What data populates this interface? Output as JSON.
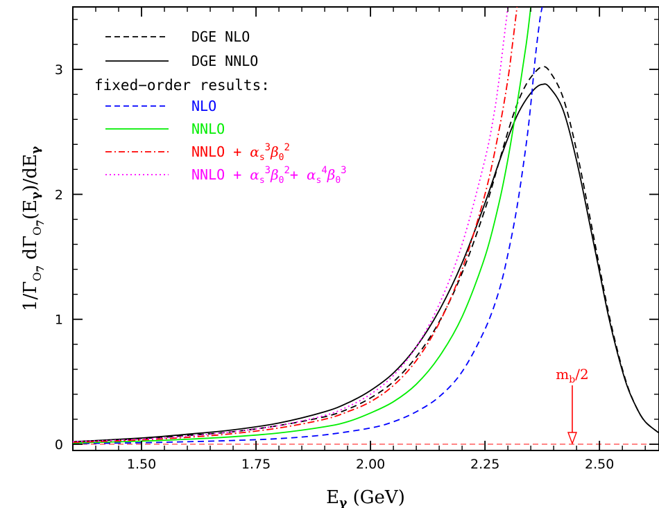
{
  "chart_data": {
    "type": "line",
    "xlabel": "Eγ (GeV)",
    "ylabel": "1/Γ₀₇   dΓ₀₇(Eγ)/dEγ",
    "xlim": [
      1.35,
      2.63
    ],
    "ylim": [
      -0.05,
      3.5
    ],
    "x_ticks": [
      1.5,
      1.75,
      2.0,
      2.25,
      2.5
    ],
    "x_tick_labels": [
      "1.50",
      "1.75",
      "2.00",
      "2.25",
      "2.50"
    ],
    "y_ticks": [
      0,
      1,
      2,
      3
    ],
    "y_tick_labels": [
      "0",
      "1",
      "2",
      "3"
    ],
    "grid": false,
    "legend_placement": "top-left",
    "legend_heading": "fixed−order results:",
    "annotation": {
      "text": "m_b/2",
      "x": 2.44,
      "y": 0,
      "color": "#ff0000"
    },
    "baseline": {
      "y": 0,
      "color": "#ff4d4d",
      "style": "dashed"
    },
    "series": [
      {
        "name": "DGE NLO",
        "color": "#000000",
        "style": "dashed",
        "points": [
          [
            1.35,
            0.02
          ],
          [
            1.5,
            0.045
          ],
          [
            1.6,
            0.07
          ],
          [
            1.7,
            0.1
          ],
          [
            1.8,
            0.15
          ],
          [
            1.9,
            0.22
          ],
          [
            1.95,
            0.28
          ],
          [
            2.0,
            0.37
          ],
          [
            2.05,
            0.5
          ],
          [
            2.1,
            0.7
          ],
          [
            2.15,
            0.98
          ],
          [
            2.2,
            1.37
          ],
          [
            2.25,
            1.88
          ],
          [
            2.28,
            2.25
          ],
          [
            2.3,
            2.5
          ],
          [
            2.32,
            2.72
          ],
          [
            2.34,
            2.88
          ],
          [
            2.36,
            2.98
          ],
          [
            2.375,
            3.02
          ],
          [
            2.39,
            2.99
          ],
          [
            2.42,
            2.78
          ],
          [
            2.45,
            2.35
          ],
          [
            2.48,
            1.8
          ],
          [
            2.5,
            1.42
          ],
          [
            2.52,
            1.05
          ],
          [
            2.54,
            0.74
          ],
          [
            2.56,
            0.48
          ],
          [
            2.58,
            0.3
          ],
          [
            2.6,
            0.18
          ],
          [
            2.63,
            0.09
          ]
        ]
      },
      {
        "name": "DGE NNLO",
        "color": "#000000",
        "style": "solid",
        "points": [
          [
            1.35,
            0.02
          ],
          [
            1.5,
            0.05
          ],
          [
            1.6,
            0.08
          ],
          [
            1.7,
            0.115
          ],
          [
            1.8,
            0.17
          ],
          [
            1.9,
            0.26
          ],
          [
            1.95,
            0.33
          ],
          [
            2.0,
            0.43
          ],
          [
            2.05,
            0.57
          ],
          [
            2.1,
            0.78
          ],
          [
            2.15,
            1.07
          ],
          [
            2.2,
            1.45
          ],
          [
            2.25,
            1.93
          ],
          [
            2.28,
            2.25
          ],
          [
            2.3,
            2.45
          ],
          [
            2.32,
            2.63
          ],
          [
            2.34,
            2.76
          ],
          [
            2.36,
            2.85
          ],
          [
            2.375,
            2.88
          ],
          [
            2.39,
            2.86
          ],
          [
            2.42,
            2.68
          ],
          [
            2.45,
            2.27
          ],
          [
            2.48,
            1.74
          ],
          [
            2.5,
            1.38
          ],
          [
            2.52,
            1.02
          ],
          [
            2.54,
            0.72
          ],
          [
            2.56,
            0.47
          ],
          [
            2.58,
            0.3
          ],
          [
            2.6,
            0.18
          ],
          [
            2.63,
            0.09
          ]
        ]
      },
      {
        "name": "NLO",
        "color": "#0000ff",
        "style": "dashed",
        "points": [
          [
            1.35,
            0.005
          ],
          [
            1.5,
            0.012
          ],
          [
            1.6,
            0.02
          ],
          [
            1.7,
            0.03
          ],
          [
            1.8,
            0.045
          ],
          [
            1.9,
            0.075
          ],
          [
            2.0,
            0.13
          ],
          [
            2.05,
            0.18
          ],
          [
            2.1,
            0.26
          ],
          [
            2.15,
            0.38
          ],
          [
            2.2,
            0.58
          ],
          [
            2.25,
            0.92
          ],
          [
            2.28,
            1.22
          ],
          [
            2.3,
            1.52
          ],
          [
            2.32,
            1.9
          ],
          [
            2.34,
            2.4
          ],
          [
            2.35,
            2.72
          ],
          [
            2.36,
            3.1
          ],
          [
            2.37,
            3.4
          ],
          [
            2.375,
            3.5
          ]
        ]
      },
      {
        "name": "NNLO",
        "color": "#00ee00",
        "style": "solid",
        "points": [
          [
            1.35,
            0.01
          ],
          [
            1.5,
            0.025
          ],
          [
            1.6,
            0.04
          ],
          [
            1.7,
            0.06
          ],
          [
            1.8,
            0.09
          ],
          [
            1.9,
            0.14
          ],
          [
            1.95,
            0.18
          ],
          [
            2.0,
            0.25
          ],
          [
            2.05,
            0.34
          ],
          [
            2.1,
            0.48
          ],
          [
            2.15,
            0.7
          ],
          [
            2.2,
            1.02
          ],
          [
            2.25,
            1.5
          ],
          [
            2.28,
            1.92
          ],
          [
            2.3,
            2.28
          ],
          [
            2.32,
            2.72
          ],
          [
            2.34,
            3.2
          ],
          [
            2.35,
            3.5
          ]
        ]
      },
      {
        "name": "NNLO + αs³β0²",
        "color": "#ff0000",
        "style": "dashdot",
        "points": [
          [
            1.35,
            0.015
          ],
          [
            1.5,
            0.035
          ],
          [
            1.6,
            0.055
          ],
          [
            1.7,
            0.085
          ],
          [
            1.8,
            0.13
          ],
          [
            1.9,
            0.2
          ],
          [
            1.95,
            0.26
          ],
          [
            2.0,
            0.34
          ],
          [
            2.05,
            0.47
          ],
          [
            2.1,
            0.67
          ],
          [
            2.15,
            0.97
          ],
          [
            2.2,
            1.4
          ],
          [
            2.25,
            2.0
          ],
          [
            2.28,
            2.5
          ],
          [
            2.3,
            2.92
          ],
          [
            2.31,
            3.2
          ],
          [
            2.32,
            3.5
          ]
        ]
      },
      {
        "name": "NNLO + αs³β0²+ αs⁴β0³",
        "color": "#ff00ff",
        "style": "dotted",
        "points": [
          [
            1.35,
            0.02
          ],
          [
            1.5,
            0.04
          ],
          [
            1.6,
            0.065
          ],
          [
            1.7,
            0.1
          ],
          [
            1.8,
            0.15
          ],
          [
            1.9,
            0.23
          ],
          [
            1.95,
            0.3
          ],
          [
            2.0,
            0.4
          ],
          [
            2.05,
            0.55
          ],
          [
            2.1,
            0.78
          ],
          [
            2.15,
            1.12
          ],
          [
            2.2,
            1.6
          ],
          [
            2.25,
            2.28
          ],
          [
            2.27,
            2.65
          ],
          [
            2.28,
            2.9
          ],
          [
            2.29,
            3.2
          ],
          [
            2.3,
            3.5
          ]
        ]
      }
    ]
  }
}
